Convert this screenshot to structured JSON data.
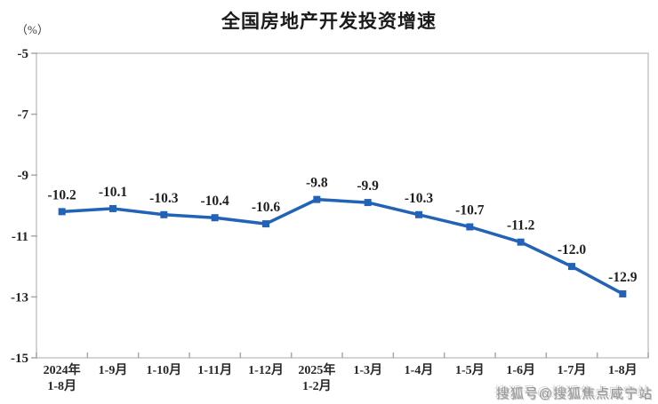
{
  "header": {
    "title": "全国房地产开发投资增速",
    "unit_label": "（%）"
  },
  "watermark": {
    "text": "搜狐号@搜狐焦点咸宁站"
  },
  "chart_data": {
    "type": "line",
    "title": "全国房地产开发投资增速",
    "ylabel": "（%）",
    "xlabel": "",
    "categories": [
      "2024年\n1-8月",
      "1-9月",
      "1-10月",
      "1-11月",
      "1-12月",
      "2025年\n1-2月",
      "1-3月",
      "1-4月",
      "1-5月",
      "1-6月",
      "1-7月",
      "1-8月"
    ],
    "series": [
      {
        "name": "全国房地产开发投资增速",
        "values": [
          -10.2,
          -10.1,
          -10.3,
          -10.4,
          -10.6,
          -9.8,
          -9.9,
          -10.3,
          -10.7,
          -11.2,
          -12.0,
          -12.9
        ],
        "data_labels": [
          "-10.2",
          "-10.1",
          "-10.3",
          "-10.4",
          "-10.6",
          "-9.8",
          "-9.9",
          "-10.3",
          "-10.7",
          "-11.2",
          "-12.0",
          "-12.9"
        ]
      }
    ],
    "yticks": [
      "-5",
      "-7",
      "-9",
      "-11",
      "-13",
      "-15"
    ],
    "ytick_values": [
      -5,
      -7,
      -9,
      -11,
      -13,
      -15
    ],
    "ylim": [
      -15,
      -5
    ],
    "grid": false,
    "legend": false,
    "marker": "square",
    "colors": {
      "line": "#2263b8",
      "marker": "#2263b8",
      "axis_box": "#c6c6c6",
      "tick": "#a9a9a9",
      "tick_label": "#262626",
      "data_label": "#1f1f1f",
      "title": "#1a1a1a"
    }
  }
}
